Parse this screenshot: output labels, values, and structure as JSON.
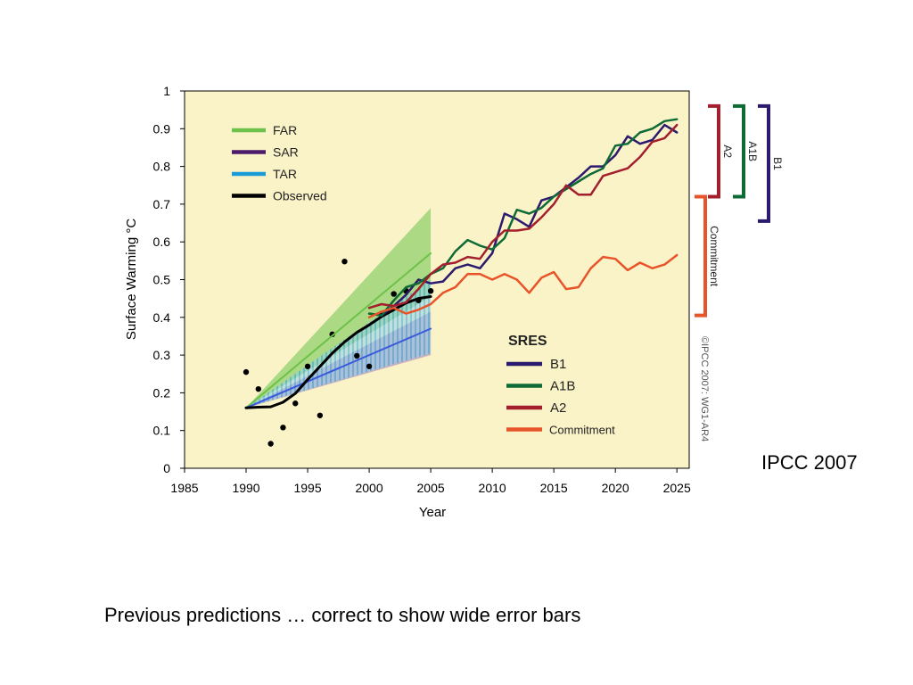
{
  "slide": {
    "side_note": "IPCC 2007",
    "caption": "Previous predictions …  correct to show wide error bars"
  },
  "chart_data": {
    "type": "line",
    "xlabel": "Year",
    "ylabel": "Surface Warming °C",
    "xlim": [
      1985,
      2026
    ],
    "ylim": [
      0,
      1
    ],
    "xticks": [
      1985,
      1990,
      1995,
      2000,
      2005,
      2010,
      2015,
      2020,
      2025
    ],
    "yticks": [
      0,
      0.1,
      0.2,
      0.3,
      0.4,
      0.5,
      0.6,
      0.7,
      0.8,
      0.9,
      1
    ],
    "background": "#fbf3c8",
    "grid": false,
    "copyright": "©IPCC 2007: WG1-AR4",
    "legend_top": {
      "position": "top-left",
      "entries": [
        {
          "label": "FAR",
          "color": "#6cc24a"
        },
        {
          "label": "SAR",
          "color": "#4b1a6b"
        },
        {
          "label": "TAR",
          "color": "#1a9ad6"
        },
        {
          "label": "Observed",
          "color": "#000000"
        }
      ]
    },
    "legend_sres": {
      "title": "SRES",
      "position": "bottom-right",
      "entries": [
        {
          "label": "B1",
          "color": "#2b1a6e"
        },
        {
          "label": "A1B",
          "color": "#0f6b35"
        },
        {
          "label": "A2",
          "color": "#a31f2e"
        },
        {
          "label": "Commitment",
          "color": "#e8542a"
        }
      ]
    },
    "brackets": [
      {
        "label": "A2",
        "color": "#a31f2e",
        "range": [
          0.72,
          0.96
        ]
      },
      {
        "label": "A1B",
        "color": "#0f6b35",
        "range": [
          0.72,
          0.96
        ]
      },
      {
        "label": "B1",
        "color": "#2b1a6e",
        "range": [
          0.655,
          0.96
        ]
      },
      {
        "label": "Commitment",
        "color": "#e8542a",
        "range": [
          0.405,
          0.72
        ]
      }
    ],
    "bands": [
      {
        "name": "FAR",
        "color": "#6cc24a",
        "opacity": 0.55,
        "lower": [
          [
            1990,
            0.16
          ],
          [
            2005,
            0.455
          ]
        ],
        "upper": [
          [
            1990,
            0.16
          ],
          [
            2005,
            0.69
          ]
        ]
      },
      {
        "name": "SAR",
        "color": "#9b6fb8",
        "opacity": 0.5,
        "lower": [
          [
            1990,
            0.16
          ],
          [
            2005,
            0.3
          ]
        ],
        "upper": [
          [
            1990,
            0.16
          ],
          [
            2005,
            0.415
          ]
        ]
      },
      {
        "name": "TAR",
        "color": "#1a9ad6",
        "opacity": 0.55,
        "hatched": true,
        "lower": [
          [
            1990,
            0.16
          ],
          [
            2005,
            0.305
          ]
        ],
        "upper": [
          [
            1990,
            0.16
          ],
          [
            2005,
            0.5
          ]
        ]
      }
    ],
    "series": [
      {
        "name": "FAR",
        "color": "#6cc24a",
        "width": 2,
        "x": [
          1990,
          2005
        ],
        "y": [
          0.16,
          0.57
        ]
      },
      {
        "name": "SAR",
        "color": "#3b5bdb",
        "width": 2,
        "x": [
          1990,
          2005
        ],
        "y": [
          0.16,
          0.37
        ]
      },
      {
        "name": "Observed",
        "color": "#000000",
        "width": 3,
        "x": [
          1990,
          1991,
          1992,
          1993,
          1994,
          1995,
          1996,
          1997,
          1998,
          1999,
          2000,
          2001,
          2002,
          2003,
          2004,
          2005
        ],
        "y": [
          0.16,
          0.162,
          0.163,
          0.175,
          0.198,
          0.235,
          0.27,
          0.305,
          0.335,
          0.36,
          0.38,
          0.402,
          0.42,
          0.438,
          0.45,
          0.455
        ]
      },
      {
        "name": "B1",
        "color": "#2b1a6e",
        "width": 2.5,
        "x": [
          2000,
          2001,
          2002,
          2003,
          2004,
          2005,
          2006,
          2007,
          2008,
          2009,
          2010,
          2011,
          2012,
          2013,
          2014,
          2015,
          2016,
          2017,
          2018,
          2019,
          2020,
          2021,
          2022,
          2023,
          2024,
          2025
        ],
        "y": [
          0.41,
          0.405,
          0.43,
          0.46,
          0.5,
          0.49,
          0.495,
          0.53,
          0.54,
          0.53,
          0.57,
          0.675,
          0.66,
          0.64,
          0.71,
          0.72,
          0.745,
          0.77,
          0.8,
          0.8,
          0.83,
          0.88,
          0.86,
          0.87,
          0.91,
          0.89
        ]
      },
      {
        "name": "A1B",
        "color": "#0f6b35",
        "width": 2.5,
        "x": [
          2000,
          2001,
          2002,
          2003,
          2004,
          2005,
          2006,
          2007,
          2008,
          2009,
          2010,
          2011,
          2012,
          2013,
          2014,
          2015,
          2016,
          2017,
          2018,
          2019,
          2020,
          2021,
          2022,
          2023,
          2024,
          2025
        ],
        "y": [
          0.41,
          0.405,
          0.445,
          0.48,
          0.49,
          0.515,
          0.53,
          0.575,
          0.605,
          0.59,
          0.58,
          0.61,
          0.685,
          0.675,
          0.69,
          0.72,
          0.74,
          0.76,
          0.78,
          0.795,
          0.855,
          0.86,
          0.89,
          0.9,
          0.92,
          0.925
        ]
      },
      {
        "name": "A2",
        "color": "#a31f2e",
        "width": 2.5,
        "x": [
          2000,
          2001,
          2002,
          2003,
          2004,
          2005,
          2006,
          2007,
          2008,
          2009,
          2010,
          2011,
          2012,
          2013,
          2014,
          2015,
          2016,
          2017,
          2018,
          2019,
          2020,
          2021,
          2022,
          2023,
          2024,
          2025
        ],
        "y": [
          0.425,
          0.435,
          0.43,
          0.44,
          0.475,
          0.515,
          0.54,
          0.545,
          0.56,
          0.555,
          0.6,
          0.63,
          0.63,
          0.635,
          0.665,
          0.7,
          0.75,
          0.725,
          0.725,
          0.775,
          0.785,
          0.795,
          0.825,
          0.865,
          0.875,
          0.91
        ]
      },
      {
        "name": "Commitment",
        "color": "#e8542a",
        "width": 2.5,
        "x": [
          2000,
          2001,
          2002,
          2003,
          2004,
          2005,
          2006,
          2007,
          2008,
          2009,
          2010,
          2011,
          2012,
          2013,
          2014,
          2015,
          2016,
          2017,
          2018,
          2019,
          2020,
          2021,
          2022,
          2023,
          2024,
          2025
        ],
        "y": [
          0.4,
          0.415,
          0.425,
          0.41,
          0.42,
          0.435,
          0.465,
          0.48,
          0.515,
          0.515,
          0.5,
          0.515,
          0.5,
          0.465,
          0.505,
          0.52,
          0.475,
          0.48,
          0.53,
          0.56,
          0.555,
          0.525,
          0.545,
          0.53,
          0.54,
          0.565
        ]
      }
    ],
    "observed_points": [
      [
        1990,
        0.255
      ],
      [
        1991,
        0.21
      ],
      [
        1992,
        0.065
      ],
      [
        1993,
        0.108
      ],
      [
        1994,
        0.172
      ],
      [
        1995,
        0.27
      ],
      [
        1996,
        0.14
      ],
      [
        1997,
        0.355
      ],
      [
        1998,
        0.548
      ],
      [
        1999,
        0.298
      ],
      [
        2000,
        0.27
      ],
      [
        2001,
        0.41
      ],
      [
        2002,
        0.462
      ],
      [
        2003,
        0.47
      ],
      [
        2004,
        0.445
      ],
      [
        2005,
        0.47
      ]
    ]
  }
}
